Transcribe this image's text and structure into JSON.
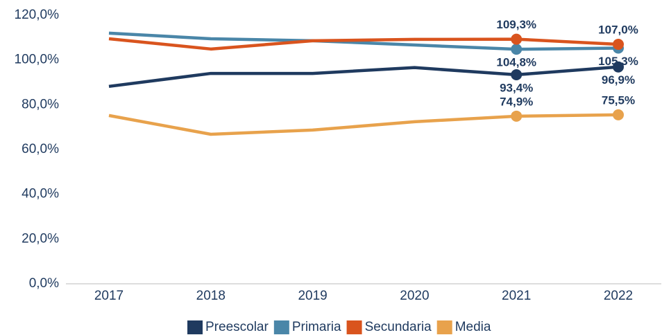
{
  "chart_data": {
    "type": "line",
    "categories": [
      "2017",
      "2018",
      "2019",
      "2020",
      "2021",
      "2022"
    ],
    "series": [
      {
        "name": "Preescolar",
        "color": "#1f3a5f",
        "values": [
          88.2,
          94.0,
          94.0,
          96.6,
          93.4,
          96.9
        ],
        "value_labels": [
          null,
          null,
          null,
          null,
          "93,4%",
          "96,9%"
        ]
      },
      {
        "name": "Primaria",
        "color": "#4a86a8",
        "values": [
          112.0,
          109.5,
          108.6,
          106.7,
          104.8,
          105.3
        ],
        "value_labels": [
          null,
          null,
          null,
          null,
          "104,8%",
          "105,3%"
        ]
      },
      {
        "name": "Secundaria",
        "color": "#d9541e",
        "values": [
          109.5,
          104.9,
          108.6,
          109.2,
          109.3,
          107.0
        ],
        "value_labels": [
          null,
          null,
          null,
          null,
          "109,3%",
          "107,0%"
        ]
      },
      {
        "name": "Media",
        "color": "#e8a24c",
        "values": [
          75.2,
          66.8,
          68.7,
          72.4,
          74.9,
          75.5
        ],
        "value_labels": [
          null,
          null,
          null,
          null,
          "74,9%",
          "75,5%"
        ]
      }
    ],
    "ylim": [
      0,
      120
    ],
    "yticks": [
      {
        "value": 0,
        "label": "0,0%"
      },
      {
        "value": 20,
        "label": "20,0%"
      },
      {
        "value": 40,
        "label": "40,0%"
      },
      {
        "value": 60,
        "label": "60,0%"
      },
      {
        "value": 80,
        "label": "80,0%"
      },
      {
        "value": 100,
        "label": "100,0%"
      },
      {
        "value": 120,
        "label": "120,0%"
      }
    ],
    "grid": false,
    "legend": "bottom"
  }
}
